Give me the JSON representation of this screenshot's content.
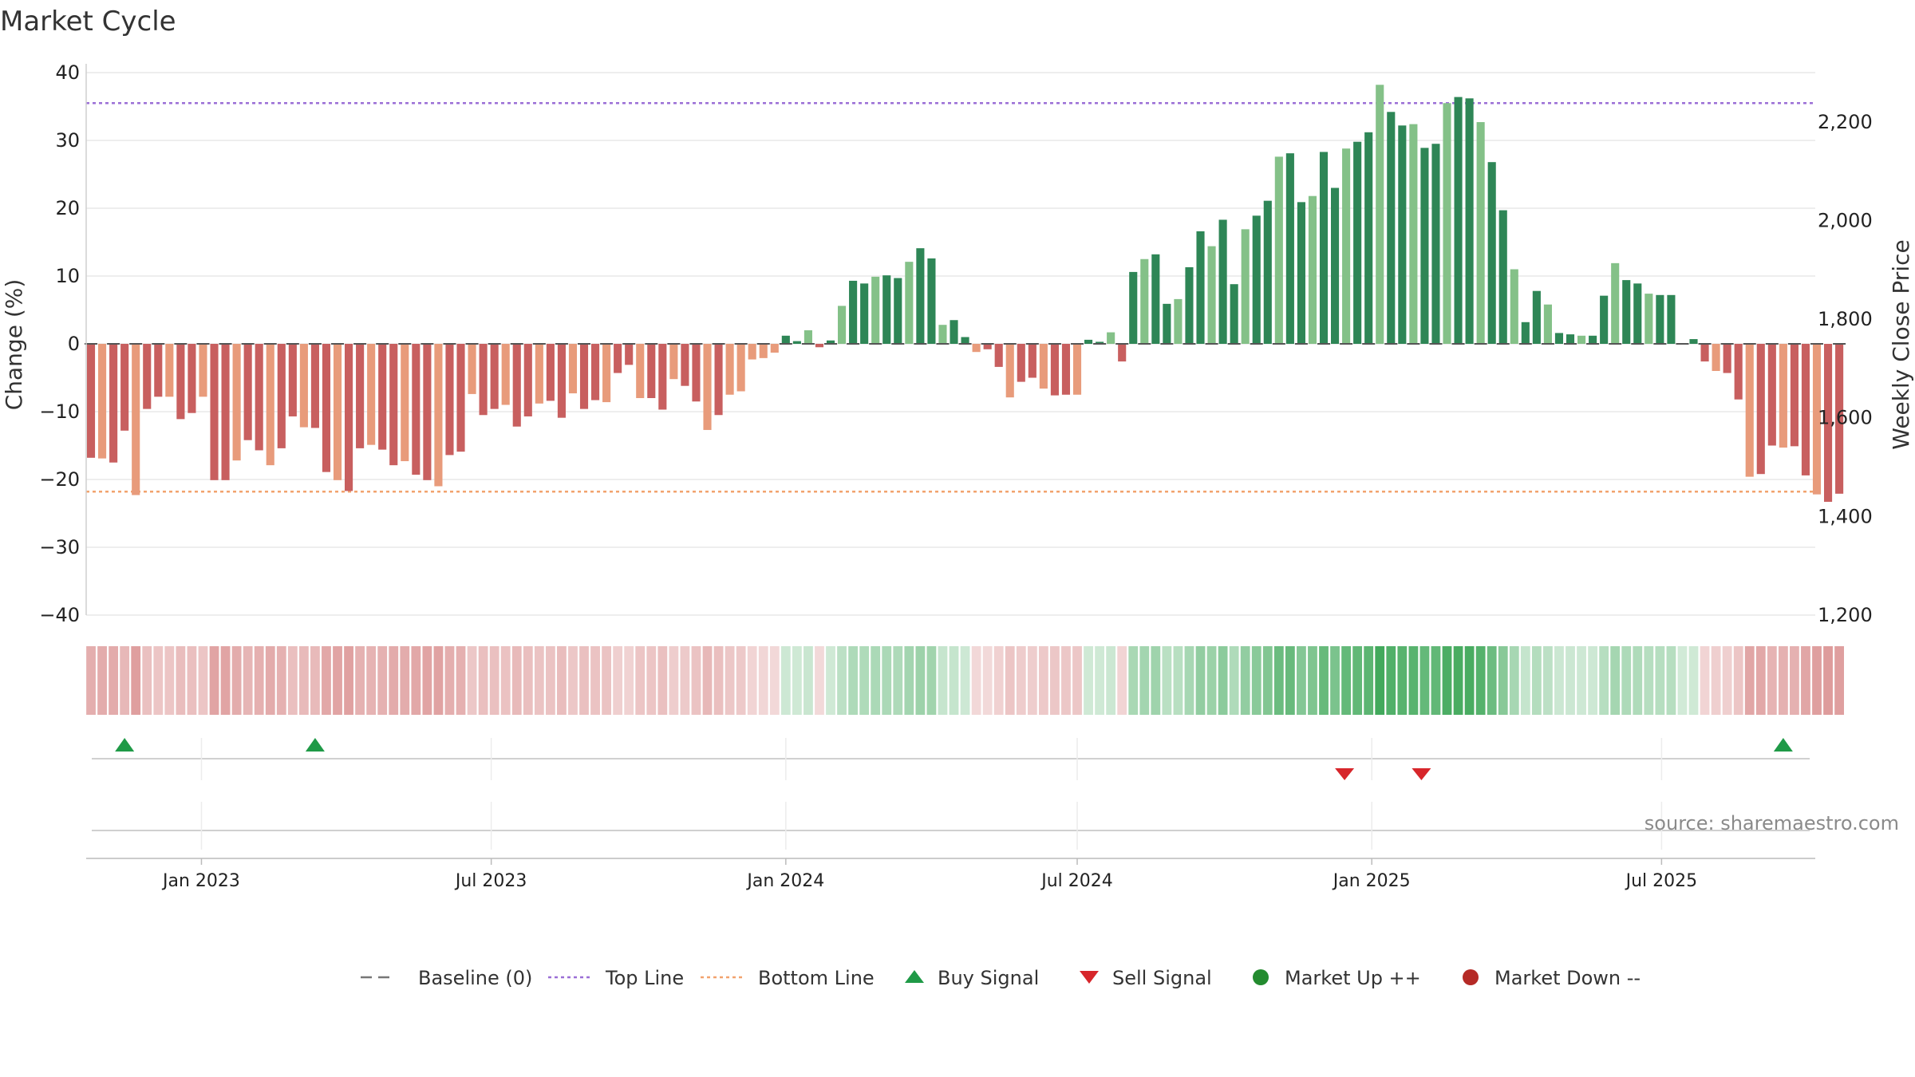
{
  "title": "Market Cycle",
  "source_text": "source: sharemaestro.com",
  "legend": [
    {
      "label": "Baseline (0)",
      "icon": "dash-line",
      "color": "#777777"
    },
    {
      "label": "Top Line",
      "icon": "dotted-line",
      "color": "#9b6fd6"
    },
    {
      "label": "Bottom Line",
      "icon": "dotted-line",
      "color": "#f2a36e"
    },
    {
      "label": "Buy Signal",
      "icon": "triangle-up",
      "color": "#1f9a47"
    },
    {
      "label": "Sell Signal",
      "icon": "triangle-down",
      "color": "#d7262b"
    },
    {
      "label": "Market Up ++",
      "icon": "circle",
      "color": "#238b2f"
    },
    {
      "label": "Market Down --",
      "icon": "circle",
      "color": "#b52a26"
    }
  ],
  "chart_data": {
    "type": "bar",
    "ylabel": "Change (%)",
    "y2label": "Weekly Close Price",
    "ylim": [
      -40,
      40
    ],
    "yticks": [
      40,
      30,
      20,
      10,
      0,
      -10,
      -20,
      -30,
      -40
    ],
    "ytick_labels": [
      "40",
      "30",
      "20",
      "10",
      "0",
      "−10",
      "−20",
      "−30",
      "−40"
    ],
    "y2lim": [
      1200,
      2300
    ],
    "y2ticks": [
      2200,
      2000,
      1800,
      1600,
      1400,
      1200
    ],
    "y2tick_labels": [
      "2,200",
      "2,000",
      "1,800",
      "1,600",
      "1,400",
      "1,200"
    ],
    "top_line": 35.5,
    "bottom_line": -21.8,
    "x_start": "2022-10-24",
    "interval_days": 7,
    "xlim": [
      "2022-10-21",
      "2025-10-05"
    ],
    "xticks": [
      "2023-01-01",
      "2023-07-01",
      "2024-01-01",
      "2024-07-01",
      "2025-01-01",
      "2025-07-01"
    ],
    "xtick_labels": [
      "Jan 2023",
      "Jul 2023",
      "Jan 2024",
      "Jul 2024",
      "Jan 2025",
      "Jul 2025"
    ],
    "values": [
      -16.8,
      -16.9,
      -17.5,
      -12.8,
      -22.3,
      -9.6,
      -7.8,
      -7.8,
      -11.1,
      -10.2,
      -7.8,
      -20.1,
      -20.1,
      -17.2,
      -14.2,
      -15.7,
      -17.9,
      -15.4,
      -10.7,
      -12.3,
      -12.4,
      -18.9,
      -20.1,
      -21.7,
      -15.4,
      -14.9,
      -15.6,
      -17.9,
      -17.3,
      -19.3,
      -20.1,
      -21.0,
      -16.4,
      -15.9,
      -7.4,
      -10.5,
      -9.6,
      -9.0,
      -12.2,
      -10.7,
      -8.8,
      -8.4,
      -10.9,
      -7.3,
      -9.6,
      -8.3,
      -8.6,
      -4.3,
      -3.1,
      -8.0,
      -8.0,
      -9.7,
      -5.2,
      -6.2,
      -8.5,
      -12.7,
      -10.5,
      -7.5,
      -7.0,
      -2.3,
      -2.1,
      -1.3,
      1.2,
      0.4,
      2.0,
      -0.5,
      0.5,
      5.6,
      9.3,
      8.9,
      9.9,
      10.1,
      9.7,
      12.1,
      14.1,
      12.6,
      2.8,
      3.5,
      1.0,
      -1.2,
      -0.8,
      -3.4,
      -7.9,
      -5.6,
      -5.0,
      -6.6,
      -7.6,
      -7.5,
      -7.5,
      0.6,
      0.3,
      1.7,
      -2.6,
      10.6,
      12.5,
      13.2,
      5.9,
      6.6,
      11.3,
      16.6,
      14.4,
      18.3,
      8.8,
      16.9,
      18.9,
      21.1,
      27.6,
      28.1,
      20.9,
      21.8,
      28.3,
      23.0,
      28.8,
      29.8,
      31.2,
      38.2,
      34.2,
      32.2,
      32.4,
      28.9,
      29.5,
      35.5,
      36.4,
      36.2,
      32.7,
      26.8,
      19.7,
      11.0,
      3.2,
      7.8,
      5.8,
      1.6,
      1.4,
      1.2,
      1.2,
      7.1,
      11.9,
      9.4,
      8.9,
      7.4,
      7.2,
      7.2,
      0.1,
      0.7,
      -2.6,
      -4.0,
      -4.3,
      -8.2,
      -19.6,
      -19.2,
      -15.0,
      -15.3,
      -15.1,
      -19.4,
      -22.2,
      -23.3,
      -22.1
    ],
    "markers": [
      {
        "type": "buy",
        "date": "2022-11-14"
      },
      {
        "type": "buy",
        "date": "2023-03-13"
      },
      {
        "type": "sell",
        "date": "2024-12-15"
      },
      {
        "type": "sell",
        "date": "2025-02-01"
      },
      {
        "type": "buy",
        "date": "2025-09-15"
      }
    ]
  },
  "colors": {
    "neg_dark": "#c85f5f",
    "neg_light": "#e89b7b",
    "pos_dark": "#2e8656",
    "pos_light": "#84c188",
    "top_line": "#9b6fd6",
    "bottom_line": "#f2a36e",
    "buy": "#1f9a47",
    "sell": "#d7262b"
  }
}
